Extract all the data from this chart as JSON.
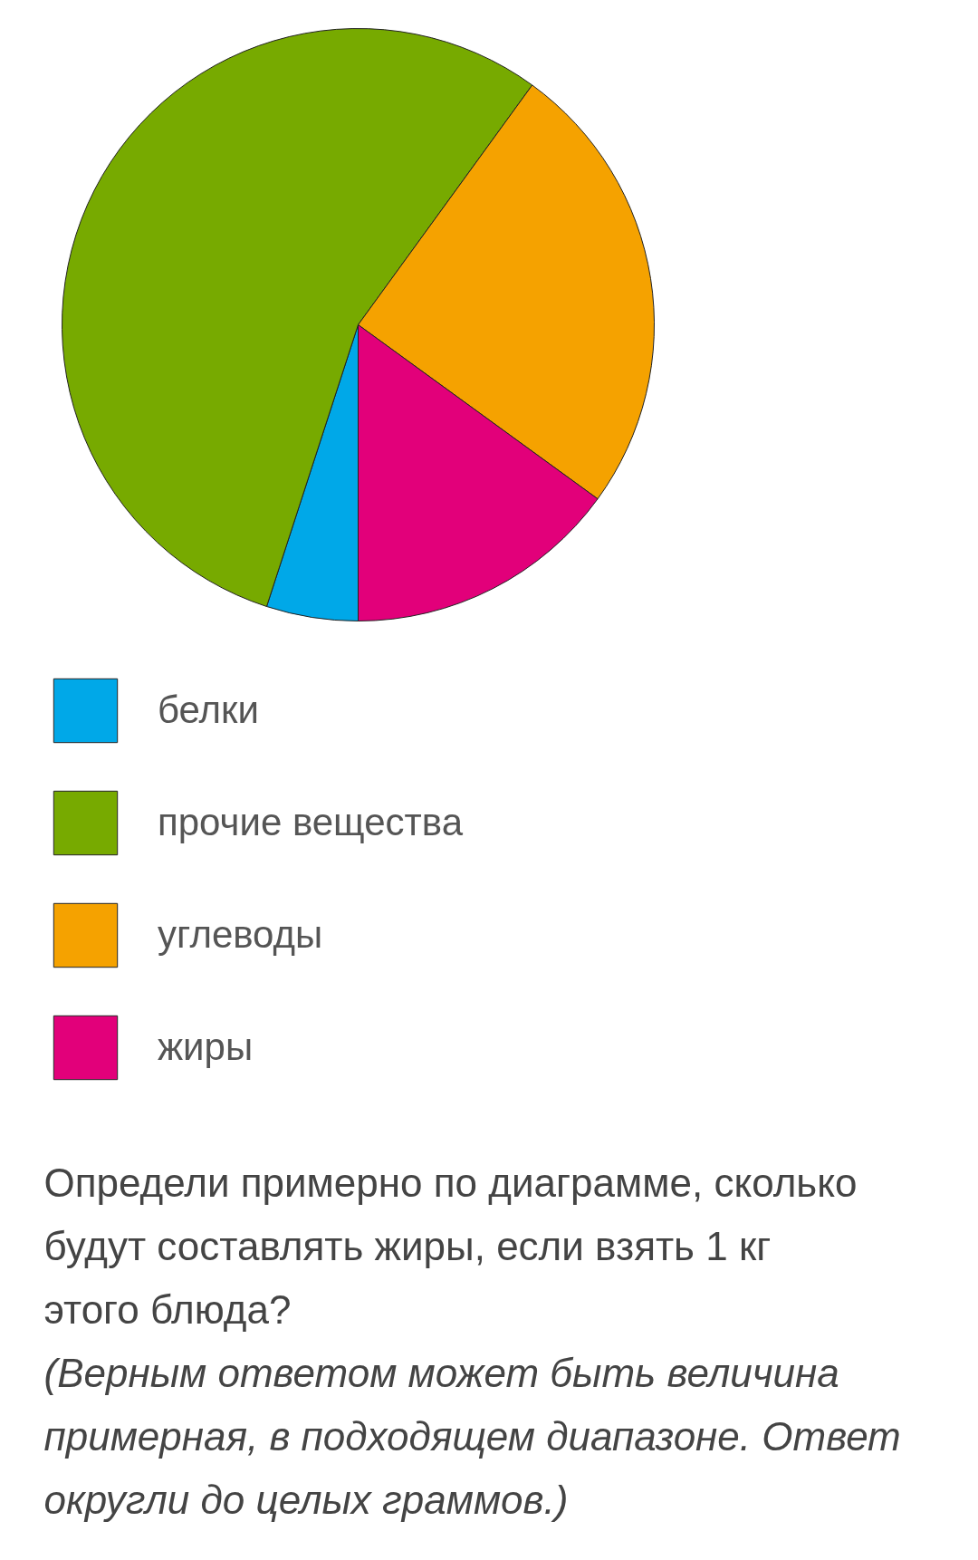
{
  "chart_data": {
    "type": "pie",
    "categories": [
      "белки",
      "прочие вещества",
      "углеводы",
      "жиры"
    ],
    "values": [
      5,
      55,
      25,
      15
    ],
    "colors": [
      "#00a8e8",
      "#77aa00",
      "#f5a200",
      "#e2007a"
    ],
    "legend": "bottom",
    "annotations": [
      "Определи примерно по диаграмме, сколько будут составлять жиры, если взять 1 кг этого блюда?",
      "(Верным ответом может быть величина примерная, в подходящем диапазоне. Ответ округли до целых граммов.)"
    ]
  }
}
